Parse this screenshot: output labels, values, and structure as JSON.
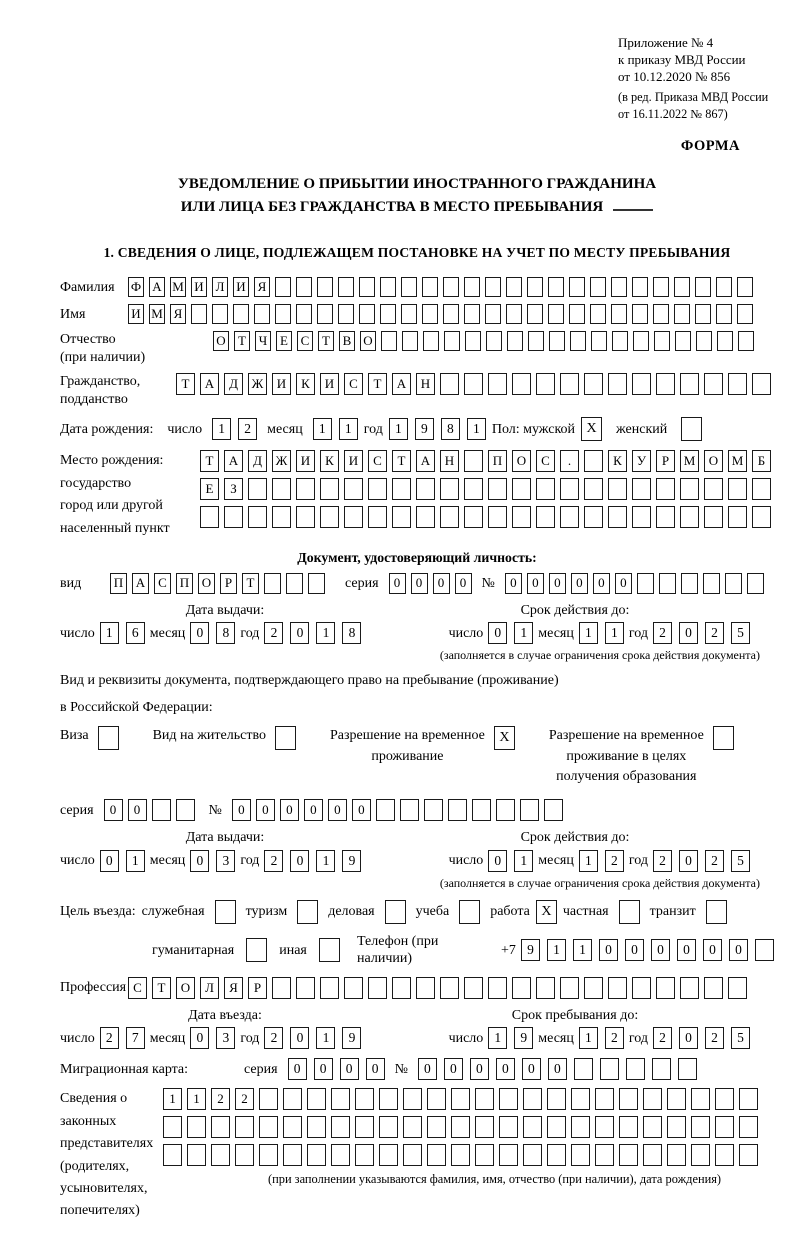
{
  "colors": {
    "ink": "#000000",
    "paper": "#ffffff"
  },
  "ref": {
    "line1": "Приложение № 4",
    "line2": "к приказу МВД России",
    "line3": "от 10.12.2020 № 856",
    "note1": "(в ред. Приказа МВД России",
    "note2": "от 16.11.2022 № 867)"
  },
  "form_label": "ФОРМА",
  "title": {
    "line1": "УВЕДОМЛЕНИЕ О ПРИБЫТИИ ИНОСТРАННОГО ГРАЖДАНИНА",
    "line2": "ИЛИ ЛИЦА БЕЗ ГРАЖДАНСТВА В МЕСТО ПРЕБЫВАНИЯ"
  },
  "section1": {
    "heading": "1. СВЕДЕНИЯ О ЛИЦЕ, ПОДЛЕЖАЩЕМ ПОСТАНОВКЕ НА УЧЕТ ПО МЕСТУ ПРЕБЫВАНИЯ",
    "labels": {
      "surname": "Фамилия",
      "name": "Имя",
      "patronymic": "Отчество",
      "patronymic_note": "(при наличии)",
      "citizenship1": "Гражданство,",
      "citizenship2": "подданство",
      "birth_date": "Дата рождения:",
      "day": "число",
      "month": "месяц",
      "year": "год",
      "sex_male": "Пол: мужской",
      "sex_female": "женский",
      "birth_place": "Место рождения:",
      "state": "государство",
      "city1": "город или другой",
      "city2": "населенный пункт",
      "identity_doc": "Документ, удостоверяющий личность:",
      "kind": "вид",
      "series": "серия",
      "number": "№",
      "issue_date": "Дата выдачи:",
      "valid_until": "Срок действия до:",
      "valid_note": "(заполняется в случае ограничения срока действия документа)",
      "residence_doc1": "Вид и реквизиты документа, подтверждающего право на пребывание (проживание)",
      "residence_doc2": "в Российской Федерации:",
      "visa": "Виза",
      "residence_permit": "Вид на жительство",
      "temp_permit1": "Разрешение на временное",
      "temp_permit2": "проживание",
      "edu_permit1": "Разрешение на временное",
      "edu_permit2": "проживание в целях",
      "edu_permit3": "получения образования",
      "purpose": "Цель въезда:",
      "official": "служебная",
      "tourism": "туризм",
      "business": "деловая",
      "study": "учеба",
      "work": "работа",
      "private": "частная",
      "transit": "транзит",
      "humanitarian": "гуманитарная",
      "other": "иная",
      "phone": "Телефон (при наличии)",
      "phone_prefix": "+7",
      "profession": "Профессия",
      "entry_date": "Дата въезда:",
      "stay_until": "Срок пребывания до:",
      "migration_card": "Миграционная карта:",
      "representatives": [
        "Сведения о",
        "законных",
        "представителях",
        "(родителях,",
        "усыновителях,",
        "попечителях)"
      ],
      "representatives_note": "(при заполнении указываются фамилия, имя, отчество (при наличии), дата рождения)"
    }
  },
  "fields": {
    "surname": {
      "chars": "ФАМИЛИЯ",
      "count": 30
    },
    "name": {
      "chars": "ИМЯ",
      "count": 30
    },
    "patronymic": {
      "chars": "ОТЧЕСТВО",
      "count": 26
    },
    "citizenship": {
      "chars": "ТАДЖИКИСТАН",
      "count": 25
    },
    "birth_place1": {
      "chars": "ТАДЖИКИСТАН ПОС. КУРМОМБ",
      "count": 24
    },
    "birth_place2": {
      "chars": "ЕЗ",
      "count": 24
    },
    "birth_place3": {
      "chars": "",
      "count": 24
    },
    "doc_kind": {
      "chars": "ПАСПОРТ",
      "count": 10
    },
    "doc_series": {
      "chars": "0000",
      "count": 4
    },
    "doc_number": {
      "chars": "000000",
      "count": 12
    },
    "permit_series": {
      "chars": "00",
      "count": 4
    },
    "permit_number": {
      "chars": "000000",
      "count": 14
    },
    "phone": {
      "chars": "911000000",
      "count": 10
    },
    "profession": {
      "chars": "СТОЛЯР",
      "count": 26
    },
    "mig_series": {
      "chars": "0000",
      "count": 4
    },
    "mig_number": {
      "chars": "000000",
      "count": 11
    },
    "rep1": {
      "chars": "1122",
      "count": 25
    },
    "rep2": {
      "chars": "",
      "count": 25
    },
    "rep3": {
      "chars": "",
      "count": 25
    }
  },
  "dates": {
    "birth": {
      "day": {
        "chars": "12",
        "count": 2
      },
      "month": {
        "chars": "11",
        "count": 2
      },
      "year": {
        "chars": "1981",
        "count": 4
      }
    },
    "doc_issue": {
      "day": {
        "chars": "16",
        "count": 2
      },
      "month": {
        "chars": "08",
        "count": 2
      },
      "year": {
        "chars": "2018",
        "count": 4
      }
    },
    "doc_valid": {
      "day": {
        "chars": "01",
        "count": 2
      },
      "month": {
        "chars": "11",
        "count": 2
      },
      "year": {
        "chars": "2025",
        "count": 4
      }
    },
    "permit_issue": {
      "day": {
        "chars": "01",
        "count": 2
      },
      "month": {
        "chars": "03",
        "count": 2
      },
      "year": {
        "chars": "2019",
        "count": 4
      }
    },
    "permit_valid": {
      "day": {
        "chars": "01",
        "count": 2
      },
      "month": {
        "chars": "12",
        "count": 2
      },
      "year": {
        "chars": "2025",
        "count": 4
      }
    },
    "entry": {
      "day": {
        "chars": "27",
        "count": 2
      },
      "month": {
        "chars": "03",
        "count": 2
      },
      "year": {
        "chars": "2019",
        "count": 4
      }
    },
    "stay": {
      "day": {
        "chars": "19",
        "count": 2
      },
      "month": {
        "chars": "12",
        "count": 2
      },
      "year": {
        "chars": "2025",
        "count": 4
      }
    }
  },
  "checks": {
    "sex_male": {
      "chars": "X",
      "count": 1
    },
    "sex_female": {
      "chars": "",
      "count": 1
    },
    "visa": {
      "chars": "",
      "count": 1
    },
    "residence_permit": {
      "chars": "",
      "count": 1
    },
    "temp_permit": {
      "chars": "X",
      "count": 1
    },
    "edu_permit": {
      "chars": "",
      "count": 1
    },
    "official": {
      "chars": "",
      "count": 1
    },
    "tourism": {
      "chars": "",
      "count": 1
    },
    "business": {
      "chars": "",
      "count": 1
    },
    "study": {
      "chars": "",
      "count": 1
    },
    "work": {
      "chars": "X",
      "count": 1
    },
    "private": {
      "chars": "",
      "count": 1
    },
    "transit": {
      "chars": "",
      "count": 1
    },
    "humanitarian": {
      "chars": "",
      "count": 1
    },
    "other": {
      "chars": "",
      "count": 1
    }
  }
}
